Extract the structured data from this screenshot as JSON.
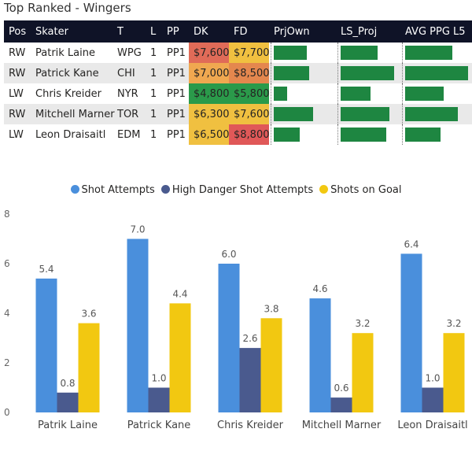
{
  "page": {
    "title": "Top Ranked - Wingers"
  },
  "table": {
    "headers": [
      "Pos",
      "Skater",
      "T",
      "L",
      "PP",
      "DK",
      "FD",
      "PrjOwn",
      "LS_Proj",
      "AVG PPG L5"
    ],
    "rows": [
      {
        "pos": "RW",
        "skater": "Patrik Laine",
        "team": "WPG",
        "line": "1",
        "pp": "PP1",
        "dk": "$7,600",
        "fd": "$7,700",
        "dk_color": "#e06b58",
        "fd_color": "#f0c040",
        "prjown": 0.56,
        "ls_proj": 0.65,
        "avg_ppg": 0.74
      },
      {
        "pos": "RW",
        "skater": "Patrick Kane",
        "team": "CHI",
        "line": "1",
        "pp": "PP1",
        "dk": "$7,000",
        "fd": "$8,500",
        "dk_color": "#f0a850",
        "fd_color": "#e4874e",
        "prjown": 0.6,
        "ls_proj": 0.94,
        "avg_ppg": 0.99
      },
      {
        "pos": "LW",
        "skater": "Chris Kreider",
        "team": "NYR",
        "line": "1",
        "pp": "PP1",
        "dk": "$4,800",
        "fd": "$5,800",
        "dk_color": "#2a9a4a",
        "fd_color": "#2a9a4a",
        "prjown": 0.22,
        "ls_proj": 0.53,
        "avg_ppg": 0.61
      },
      {
        "pos": "RW",
        "skater": "Mitchell Marner",
        "team": "TOR",
        "line": "1",
        "pp": "PP1",
        "dk": "$6,300",
        "fd": "$7,600",
        "dk_color": "#f0c040",
        "fd_color": "#f0c040",
        "prjown": 0.66,
        "ls_proj": 0.86,
        "avg_ppg": 0.83
      },
      {
        "pos": "LW",
        "skater": "Leon Draisaitl",
        "team": "EDM",
        "line": "1",
        "pp": "PP1",
        "dk": "$6,500",
        "fd": "$8,800",
        "dk_color": "#f0c040",
        "fd_color": "#e05858",
        "prjown": 0.44,
        "ls_proj": 0.8,
        "avg_ppg": 0.55
      }
    ]
  },
  "chart_data": {
    "type": "bar",
    "categories": [
      "Patrik Laine",
      "Patrick Kane",
      "Chris Kreider",
      "Mitchell Marner",
      "Leon Draisaitl"
    ],
    "series": [
      {
        "name": "Shot Attempts",
        "color": "#4a8fdc",
        "values": [
          5.4,
          7.0,
          6.0,
          4.6,
          6.4
        ]
      },
      {
        "name": "High Danger Shot Attempts",
        "color": "#4a5a8e",
        "values": [
          0.8,
          1.0,
          2.6,
          0.6,
          1.0
        ]
      },
      {
        "name": "Shots on Goal",
        "color": "#f2c811",
        "values": [
          3.6,
          4.4,
          3.8,
          3.2,
          3.2
        ]
      }
    ],
    "ylim": [
      0,
      8
    ],
    "yticks": [
      0,
      2,
      4,
      6,
      8
    ],
    "legend_position": "top-center",
    "grid": false
  }
}
